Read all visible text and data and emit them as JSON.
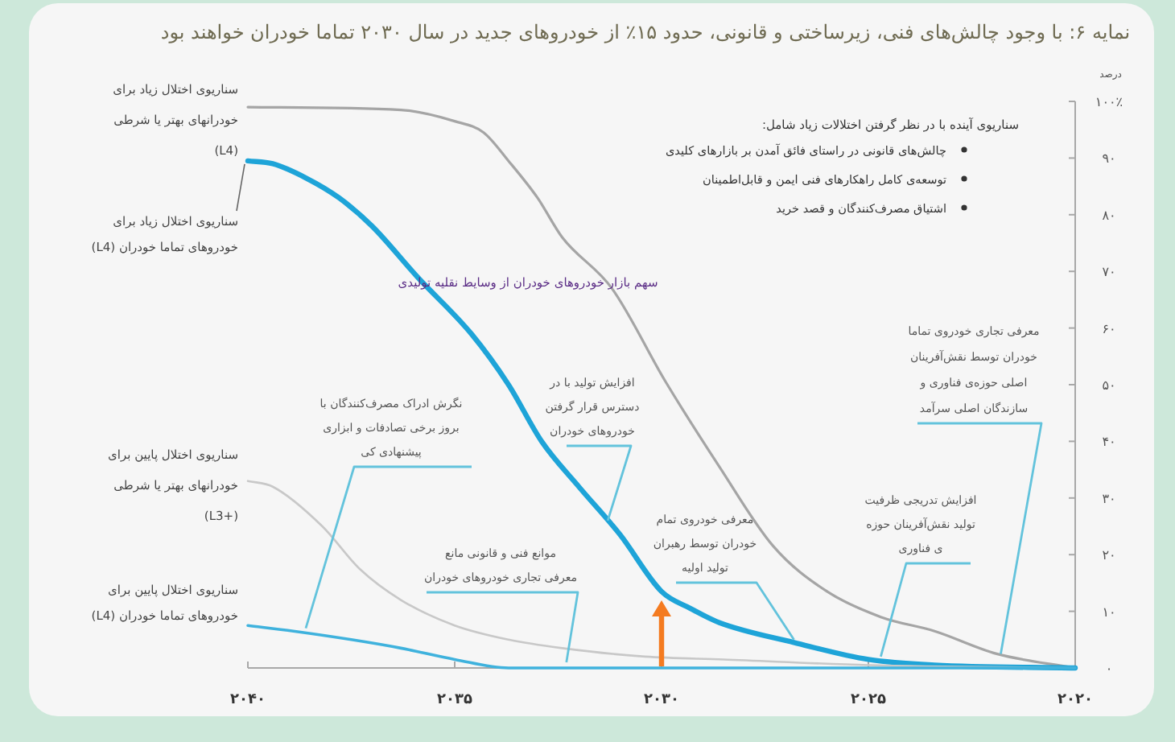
{
  "chart_data": {
    "type": "line",
    "title": "نمایه ۶: با وجود چالش‌های فنی، زیرساختی و قانونی، حدود ۱۵٪ از خودروهای جدید در سال ۲۰۳۰ تماما خودران خواهند بود",
    "ylabel": "درصد",
    "xlim": [
      2040,
      2020
    ],
    "xticks": [
      {
        "value": 2040,
        "label": "۲۰۴۰"
      },
      {
        "value": 2035,
        "label": "۲۰۳۵"
      },
      {
        "value": 2030,
        "label": "۲۰۳۰"
      },
      {
        "value": 2025,
        "label": "۲۰۲۵"
      },
      {
        "value": 2020,
        "label": "۲۰۲۰"
      }
    ],
    "ylim": [
      0,
      100
    ],
    "yticks": [
      {
        "value": 0,
        "label": "۰"
      },
      {
        "value": 10,
        "label": "۱۰"
      },
      {
        "value": 20,
        "label": "۲۰"
      },
      {
        "value": 30,
        "label": "۳۰"
      },
      {
        "value": 40,
        "label": "۴۰"
      },
      {
        "value": 50,
        "label": "۵۰"
      },
      {
        "value": 60,
        "label": "۶۰"
      },
      {
        "value": 70,
        "label": "۷۰"
      },
      {
        "value": 80,
        "label": "۸۰"
      },
      {
        "value": 90,
        "label": "۹۰"
      },
      {
        "value": 100,
        "label": "۱۰۰٪"
      }
    ],
    "series": [
      {
        "name": "سناریوی اختلال زیاد برای\nخودرانهای بهتر یا شرطی\n(L4)",
        "color": "#a5a5a5",
        "x": [
          2040,
          2036.3,
          2035,
          2034.3,
          2033.7,
          2033,
          2032.4,
          2031.2,
          2029.9,
          2028.6,
          2027.3,
          2026,
          2024.7,
          2023.4,
          2021.9,
          2020
        ],
        "values": [
          99,
          98.5,
          96.5,
          94.5,
          89.5,
          83,
          76,
          67,
          50.5,
          35.5,
          21.5,
          13.5,
          9,
          6.5,
          2.5,
          0
        ]
      },
      {
        "name": "سناریوی اختلال زیاد برای\nخودروهای تماما خودران (L4)",
        "color": "#1ea4d8",
        "x": [
          2040,
          2039.4,
          2038.6,
          2037.8,
          2037,
          2035.9,
          2034.6,
          2033.7,
          2032.9,
          2032,
          2031,
          2030,
          2029.3,
          2028.6,
          2026.8,
          2025,
          2023.4,
          2020
        ],
        "values": [
          89.5,
          89,
          86.5,
          83,
          78,
          69,
          59,
          50,
          40,
          32,
          23.5,
          13.5,
          10.5,
          8,
          4.5,
          1.5,
          0.5,
          0
        ]
      },
      {
        "name": "سناریوی اختلال پایین برای\nخودرانهای بهتر یا شرطی\n(L3+)",
        "color": "#c8c8c8",
        "x": [
          2040,
          2039.4,
          2038.2,
          2037.3,
          2036.3,
          2035,
          2033.7,
          2032.4,
          2030.4,
          2028.5,
          2025,
          2020
        ],
        "values": [
          33,
          32,
          25,
          17.5,
          12,
          7.5,
          5,
          3.5,
          2,
          1.5,
          0.5,
          0
        ]
      },
      {
        "name": "سناریوی اختلال پایین برای\nخودروهای تماما خودران (L4)",
        "color": "#3fb2dd",
        "x": [
          2040,
          2038.9,
          2037.5,
          2036.3,
          2035,
          2033.7,
          2032.4,
          2020
        ],
        "values": [
          7.5,
          6.5,
          5,
          3.5,
          1.5,
          0,
          0,
          0
        ]
      }
    ],
    "annotations": [
      "سهم بازار خودروهای خودران از وسایط نقلیه تولیدی",
      "سناریوی آینده با در نظر گرفتن اختلالات زیاد شامل:",
      "چالش‌های قانونی در راستای فائق آمدن بر بازارهای کلیدی",
      "توسعه‌ی کامل راهکارهای فنی ایمن و قابل‌اطمینان",
      "اشتیاق مصرف‌کنندگان و قصد خرید",
      {
        "text": "نگرش ادراک مصرف‌کنندگان با\nبروز برخی تصادفات و ابزاری\nپیشنهادی کی",
        "x": 2038.6,
        "y": 7
      },
      {
        "text": "افزایش تولید با در\nدسترس قرار گرفتن\nخودروهای خودران",
        "x": 2031.3,
        "y": 26
      },
      {
        "text": "موانع فنی و قانونی مانع\nمعرفی تجاری خودروهای خودران",
        "x": 2032.3,
        "y": 1
      },
      {
        "text": "معرفی خودروی تمام\nخودران توسط رهبران\nتولید اولیه",
        "x": 2026.8,
        "y": 5
      },
      {
        "text": "افزایش تدریجی ظرفیت\nتولید نقش‌آفرینان حوزه‌\nی فناوری",
        "x": 2024.7,
        "y": 2
      },
      {
        "text": "معرفی تجاری خودروی تماما\nخودران توسط نقش‌آفرینان\nاصلی حوزه‌ی فناوری و\nسازندگان اصلی سرآمد",
        "x": 2021.8,
        "y": 2.5
      }
    ],
    "ref_lines": [
      {
        "axis": "x",
        "value": 2030,
        "color": "#f47b20"
      }
    ]
  }
}
